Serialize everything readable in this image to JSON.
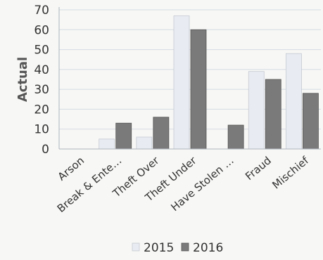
{
  "chart_data": {
    "type": "bar",
    "categories": [
      "Arson",
      "Break & Ente…",
      "Theft Over",
      "Theft Under",
      "Have Stolen …",
      "Fraud",
      "Mischief"
    ],
    "series": [
      {
        "name": "2015",
        "values": [
          0,
          5,
          6,
          67,
          0,
          39,
          48
        ],
        "color": "#e8ebf1"
      },
      {
        "name": "2016",
        "values": [
          0,
          13,
          16,
          60,
          12,
          35,
          28
        ],
        "color": "#7a7a7a"
      }
    ],
    "ylabel": "Actual",
    "xlabel": "",
    "ylim": [
      0,
      70
    ],
    "yticks": [
      0,
      10,
      20,
      30,
      40,
      50,
      60,
      70
    ],
    "grid": true,
    "legend_position": "bottom"
  }
}
